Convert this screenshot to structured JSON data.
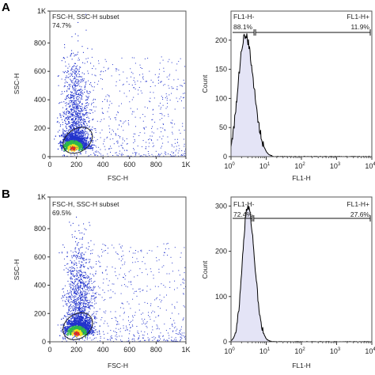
{
  "chart_data": [
    {
      "panel": "A",
      "type": "scatter",
      "title": "",
      "xlabel": "FSC-H",
      "ylabel": "SSC-H",
      "xlim": [
        0,
        1024
      ],
      "ylim": [
        0,
        1024
      ],
      "x_ticks": [
        "0",
        "200",
        "400",
        "600",
        "800",
        "1K"
      ],
      "y_ticks": [
        "0",
        "200",
        "400",
        "600",
        "800",
        "1K"
      ],
      "gate": {
        "name": "FSC-H, SSC-H subset",
        "percent": "74.7%",
        "shape": "ellipse",
        "center": [
          210,
          115
        ],
        "radius": [
          120,
          80
        ]
      },
      "density_peak": [
        170,
        60
      ],
      "description_of_population": "dense events concentrated at low FSC/SSC"
    },
    {
      "panel": "A",
      "type": "histogram",
      "xlabel": "FL1-H",
      "ylabel": "Count",
      "xscale": "log",
      "xlim": [
        1,
        10000
      ],
      "ylim": [
        0,
        250
      ],
      "y_ticks": [
        "0",
        "50",
        "100",
        "150",
        "200"
      ],
      "mode_x": 2.5,
      "mode_count": 210,
      "gates": [
        {
          "name": "FL1-H-",
          "percent": "88.1%"
        },
        {
          "name": "FL1-H+",
          "percent": "11.9%"
        }
      ],
      "gate_threshold": 4.5
    },
    {
      "panel": "B",
      "type": "scatter",
      "title": "",
      "xlabel": "FSC-H",
      "ylabel": "SSC-H",
      "xlim": [
        0,
        1024
      ],
      "ylim": [
        0,
        1024
      ],
      "x_ticks": [
        "0",
        "200",
        "400",
        "600",
        "800",
        "1K"
      ],
      "y_ticks": [
        "0",
        "200",
        "400",
        "600",
        "800",
        "1K"
      ],
      "gate": {
        "name": "FSC-H, SSC-H subset",
        "percent": "69.5%",
        "shape": "ellipse",
        "center": [
          210,
          110
        ],
        "radius": [
          120,
          85
        ]
      },
      "density_peak": [
        200,
        60
      ]
    },
    {
      "panel": "B",
      "type": "histogram",
      "xlabel": "FL1-H",
      "ylabel": "Count",
      "xscale": "log",
      "xlim": [
        1,
        10000
      ],
      "ylim": [
        0,
        320
      ],
      "y_ticks": [
        "0",
        "100",
        "200",
        "300"
      ],
      "mode_x": 3.0,
      "mode_count": 300,
      "gates": [
        {
          "name": "FL1-H-",
          "percent": "72.4%"
        },
        {
          "name": "FL1-H+",
          "percent": "27.6%"
        }
      ],
      "gate_threshold": 4.0
    }
  ],
  "panels": {
    "a_label": "A",
    "b_label": "B",
    "hist_x_ticks": [
      "0",
      "1",
      "2",
      "3",
      "4"
    ],
    "hist_x_tick_base": "10"
  },
  "colors": {
    "dot_low": "#2233cc",
    "dot_mid": "#2fb84a",
    "dot_high": "#f0e020",
    "dot_peak": "#e03020",
    "hist_fill": "#e4e4f6",
    "line": "#000000"
  }
}
